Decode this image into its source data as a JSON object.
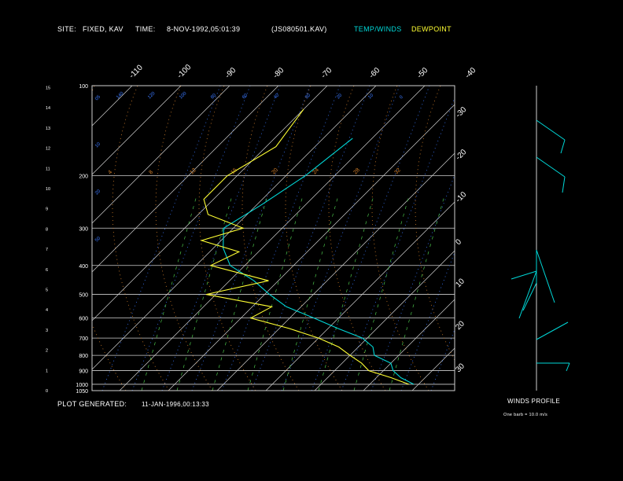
{
  "header": {
    "site_label": "SITE:",
    "site_value": "FIXED, KAV",
    "time_label": "TIME:",
    "time_value": "8-NOV-1992,05:01:39",
    "file_id": "(JS080501.KAV)",
    "legend_temp": "TEMP/WINDS",
    "legend_dew": "DEWPOINT",
    "colors": {
      "temp": "#00d8d8",
      "dew": "#ffff33",
      "text": "#ffffff"
    }
  },
  "footer": {
    "plot_generated_label": "PLOT GENERATED:",
    "plot_generated_value": "11-JAN-1996,00:13:33",
    "winds_title": "WINDS PROFILE",
    "winds_note": "One barb = 10.0 m/s"
  },
  "chart_data": {
    "type": "line",
    "chart_kind": "skew-T log-P thermodynamic diagram",
    "pressure_ticks": [
      100,
      200,
      300,
      400,
      500,
      600,
      700,
      800,
      900,
      1000,
      1050
    ],
    "pressure_labels": [
      "100",
      "200",
      "300",
      "400",
      "500",
      "600",
      "700",
      "800",
      "900",
      "1000",
      "1050"
    ],
    "height_ticks_km": [
      "0",
      "1",
      "2",
      "3",
      "4",
      "5",
      "6",
      "7",
      "8",
      "9",
      "10",
      "11",
      "12",
      "13",
      "14",
      "15"
    ],
    "temperature_isotherms_top": [
      "-110",
      "-100",
      "-90",
      "-80",
      "-70",
      "-60",
      "-50",
      "-40"
    ],
    "temperature_isotherms_right": [
      "-30",
      "-20",
      "-10",
      "0",
      "10",
      "20",
      "30"
    ],
    "temperature_unit": "deg C",
    "mixing_ratio_labels": [
      "05",
      "10",
      "20",
      "50"
    ],
    "dry_adiabat_labels": [
      "140",
      "120",
      "100",
      "80",
      "60",
      "40",
      "30",
      "20",
      "10",
      "0"
    ],
    "moist_adiabat_labels": [
      "4",
      "8",
      "12",
      "16",
      "20",
      "24",
      "28",
      "32"
    ],
    "series": [
      {
        "name": "TEMP/WINDS",
        "color": "#00d8d8",
        "x_temp_c": [
          9,
          5,
          2,
          0,
          -5,
          -7,
          -11,
          -18,
          -25,
          -33,
          -39,
          -45,
          -53,
          -58,
          -62,
          -59,
          -56,
          -54
        ],
        "y_pressure_hpa": [
          1000,
          950,
          900,
          850,
          800,
          750,
          700,
          650,
          600,
          550,
          500,
          450,
          400,
          350,
          300,
          250,
          200,
          150
        ]
      },
      {
        "name": "DEWPOINT",
        "color": "#ffff33",
        "x_temp_c": [
          8,
          3,
          -3,
          -6,
          -10,
          -14,
          -20,
          -28,
          -38,
          -36,
          -52,
          -42,
          -57,
          -54,
          -64,
          -58,
          -68,
          -72,
          -72,
          -68,
          -70
        ],
        "y_pressure_hpa": [
          1000,
          950,
          900,
          850,
          800,
          750,
          700,
          650,
          600,
          550,
          500,
          450,
          400,
          360,
          330,
          300,
          270,
          240,
          200,
          160,
          120
        ]
      }
    ],
    "winds_profile": {
      "unit": "m/s",
      "barb_value": 10.0
    },
    "grid": true
  }
}
